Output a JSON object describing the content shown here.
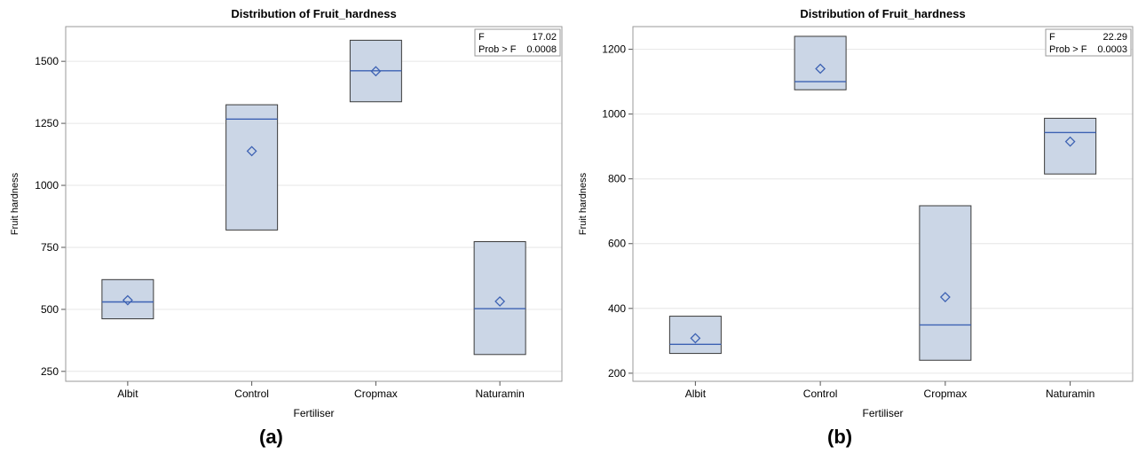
{
  "chart_data": [
    {
      "type": "box",
      "panel_label": "(a)",
      "title": "Distribution of Fruit_hardness",
      "xlabel": "Fertiliser",
      "ylabel": "Fruit hardness",
      "ylim": [
        210,
        1640
      ],
      "yticks": [
        250,
        500,
        750,
        1000,
        1250,
        1500
      ],
      "grid": true,
      "categories": [
        "Albit",
        "Control",
        "Cropmax",
        "Naturamin"
      ],
      "boxes": [
        {
          "category": "Albit",
          "min": 462,
          "q1": 462,
          "median": 530,
          "mean": 537,
          "q3": 620,
          "max": 620
        },
        {
          "category": "Control",
          "min": 820,
          "q1": 820,
          "median": 1267,
          "mean": 1138,
          "q3": 1325,
          "max": 1325
        },
        {
          "category": "Cropmax",
          "min": 1337,
          "q1": 1337,
          "median": 1462,
          "mean": 1460,
          "q3": 1585,
          "max": 1585
        },
        {
          "category": "Naturamin",
          "min": 318,
          "q1": 318,
          "median": 503,
          "mean": 532,
          "q3": 773,
          "max": 773
        }
      ],
      "stats": {
        "f_label": "F",
        "f_value": "17.02",
        "p_label": "Prob > F",
        "p_value": "0.0008"
      },
      "colors": {
        "box_fill": "#cbd6e6",
        "box_stroke": "#3a3a3a",
        "median": "#3d62b3",
        "mean": "#3d62b3",
        "grid": "#e6e6e6"
      }
    },
    {
      "type": "box",
      "panel_label": "(b)",
      "title": "Distribution of Fruit_hardness",
      "xlabel": "Fertiliser",
      "ylabel": "Fruit hardness",
      "ylim": [
        175,
        1270
      ],
      "yticks": [
        200,
        400,
        600,
        800,
        1000,
        1200
      ],
      "grid": true,
      "categories": [
        "Albit",
        "Control",
        "Cropmax",
        "Naturamin"
      ],
      "boxes": [
        {
          "category": "Albit",
          "min": 261,
          "q1": 261,
          "median": 289,
          "mean": 308,
          "q3": 376,
          "max": 376
        },
        {
          "category": "Control",
          "min": 1075,
          "q1": 1075,
          "median": 1100,
          "mean": 1140,
          "q3": 1240,
          "max": 1240
        },
        {
          "category": "Cropmax",
          "min": 240,
          "q1": 240,
          "median": 349,
          "mean": 435,
          "q3": 717,
          "max": 717
        },
        {
          "category": "Naturamin",
          "min": 815,
          "q1": 815,
          "median": 943,
          "mean": 915,
          "q3": 987,
          "max": 987
        }
      ],
      "stats": {
        "f_label": "F",
        "f_value": "22.29",
        "p_label": "Prob > F",
        "p_value": "0.0003"
      },
      "colors": {
        "box_fill": "#cbd6e6",
        "box_stroke": "#3a3a3a",
        "median": "#3d62b3",
        "mean": "#3d62b3",
        "grid": "#e6e6e6"
      }
    }
  ]
}
